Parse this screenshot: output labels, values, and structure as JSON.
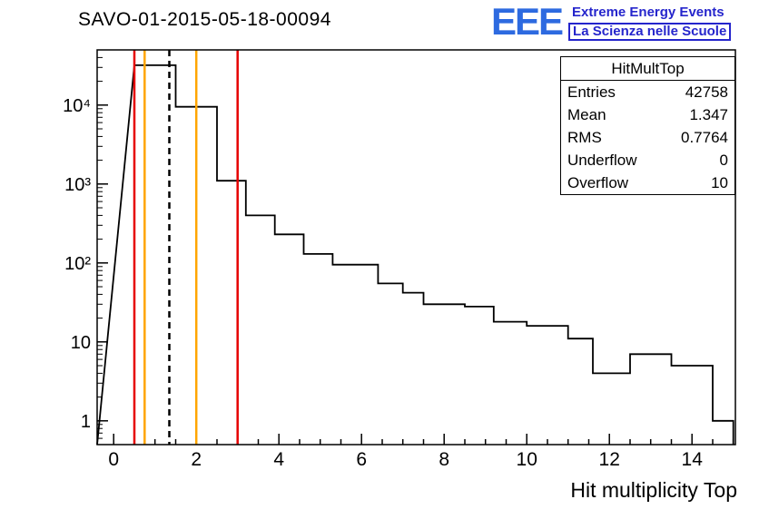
{
  "header": {
    "title": "SAVO-01-2015-05-18-00094",
    "logo": {
      "acronym": "EEE",
      "line1": "Extreme Energy Events",
      "line2": "La Scienza nelle Scuole",
      "acronym_color": "#2d6ae0",
      "text_color": "#2525cc"
    }
  },
  "stats": {
    "title": "HitMultTop",
    "rows": [
      {
        "label": "Entries",
        "value": "42758"
      },
      {
        "label": "Mean",
        "value": "1.347"
      },
      {
        "label": "RMS",
        "value": "0.7764"
      },
      {
        "label": "Underflow",
        "value": "0"
      },
      {
        "label": "Overflow",
        "value": "10"
      }
    ]
  },
  "chart_data": {
    "type": "bar",
    "style": "step-outline-histogram",
    "title": "SAVO-01-2015-05-18-00094",
    "xlabel": "Hit multiplicity Top",
    "ylabel": "",
    "x_scale": "linear",
    "y_scale": "log",
    "xlim": [
      -0.4,
      15.05
    ],
    "ylim": [
      0.5,
      50000
    ],
    "grid": false,
    "legend": false,
    "line_color": "#000000",
    "steps": [
      {
        "x1": 0.5,
        "x2": 1.5,
        "y": 32000
      },
      {
        "x1": 1.5,
        "x2": 2.5,
        "y": 9500
      },
      {
        "x1": 2.5,
        "x2": 3.2,
        "y": 1100
      },
      {
        "x1": 3.2,
        "x2": 3.9,
        "y": 400
      },
      {
        "x1": 3.9,
        "x2": 4.6,
        "y": 230
      },
      {
        "x1": 4.6,
        "x2": 5.3,
        "y": 130
      },
      {
        "x1": 5.3,
        "x2": 6.4,
        "y": 95
      },
      {
        "x1": 6.4,
        "x2": 7.0,
        "y": 55
      },
      {
        "x1": 7.0,
        "x2": 7.5,
        "y": 42
      },
      {
        "x1": 7.5,
        "x2": 8.5,
        "y": 30
      },
      {
        "x1": 8.5,
        "x2": 9.2,
        "y": 28
      },
      {
        "x1": 9.2,
        "x2": 10.0,
        "y": 18
      },
      {
        "x1": 10.0,
        "x2": 11.0,
        "y": 16
      },
      {
        "x1": 11.0,
        "x2": 11.6,
        "y": 11
      },
      {
        "x1": 11.6,
        "x2": 12.5,
        "y": 4
      },
      {
        "x1": 12.5,
        "x2": 13.5,
        "y": 7
      },
      {
        "x1": 13.5,
        "x2": 14.5,
        "y": 5
      },
      {
        "x1": 14.5,
        "x2": 15.0,
        "y": 1
      }
    ],
    "marker_lines": [
      {
        "x": 0.5,
        "color": "#e60000",
        "style": "solid"
      },
      {
        "x": 0.75,
        "color": "#ffa500",
        "style": "solid"
      },
      {
        "x": 1.347,
        "color": "#000000",
        "style": "dashed"
      },
      {
        "x": 2.0,
        "color": "#ffa500",
        "style": "solid"
      },
      {
        "x": 3.0,
        "color": "#e60000",
        "style": "solid"
      }
    ],
    "xticks": {
      "major_step": 2,
      "minor_step": 0.5,
      "values": [
        0,
        2,
        4,
        6,
        8,
        10,
        12,
        14
      ],
      "labels": [
        "0",
        "2",
        "4",
        "6",
        "8",
        "10",
        "12",
        "14"
      ]
    },
    "yticks": {
      "values": [
        1,
        10,
        100,
        1000,
        10000
      ],
      "labels": [
        "1",
        "10",
        "10²",
        "10³",
        "10⁴"
      ]
    }
  }
}
